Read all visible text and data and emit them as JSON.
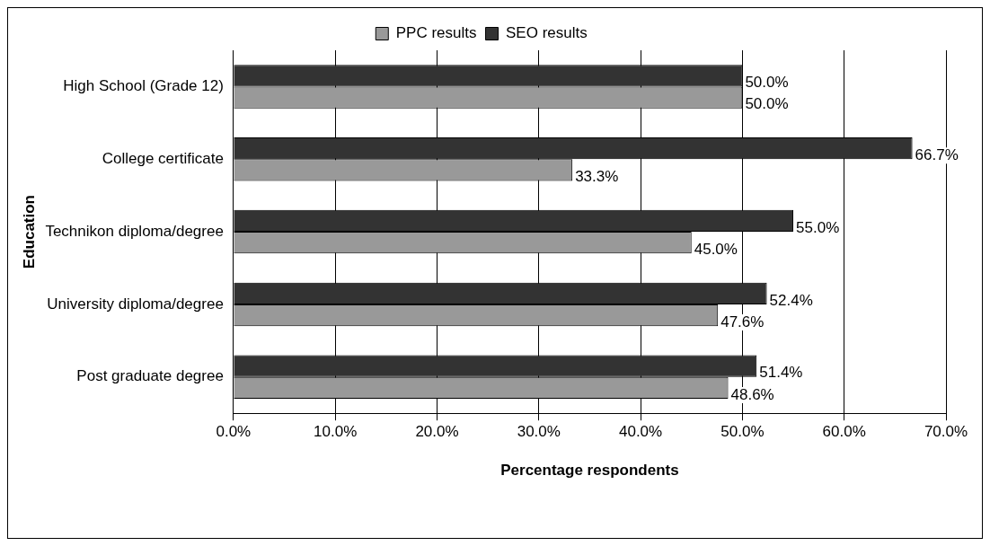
{
  "chart_data": {
    "type": "bar",
    "orientation": "horizontal",
    "xlabel": "Percentage respondents",
    "ylabel": "Education",
    "categories": [
      "High School (Grade 12)",
      "College certificate",
      "Technikon diploma/degree",
      "University diploma/degree",
      "Post graduate degree"
    ],
    "series": [
      {
        "name": "PPC results",
        "color": "#999999",
        "values": [
          50.0,
          33.3,
          45.0,
          47.6,
          48.6
        ],
        "value_labels": [
          "50.0%",
          "33.3%",
          "45.0%",
          "47.6%",
          "48.6%"
        ]
      },
      {
        "name": "SEO results",
        "color": "#333333",
        "values": [
          50.0,
          66.7,
          55.0,
          52.4,
          51.4
        ],
        "value_labels": [
          "50.0%",
          "66.7%",
          "55.0%",
          "52.4%",
          "51.4%"
        ]
      }
    ],
    "xlim": [
      0,
      70
    ],
    "xticks": [
      {
        "value": 0,
        "label": "0.0%"
      },
      {
        "value": 10,
        "label": "10.0%"
      },
      {
        "value": 20,
        "label": "20.0%"
      },
      {
        "value": 30,
        "label": "30.0%"
      },
      {
        "value": 40,
        "label": "40.0%"
      },
      {
        "value": 50,
        "label": "50.0%"
      },
      {
        "value": 60,
        "label": "60.0%"
      },
      {
        "value": 70,
        "label": "70.0%"
      }
    ],
    "grid": "x",
    "legend": "top"
  }
}
